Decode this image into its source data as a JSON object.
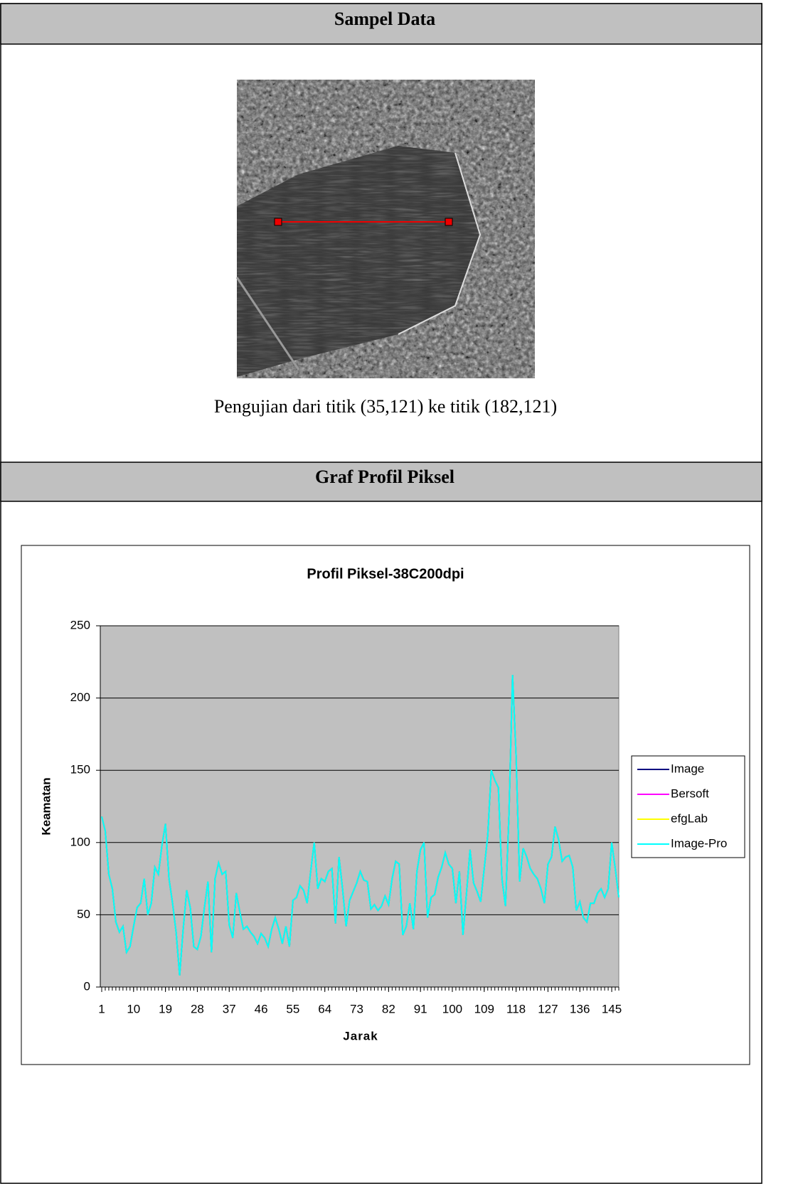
{
  "document": {
    "section_1_title": "Sampel Data",
    "caption": "Pengujian dari  titik (35,121) ke titik (182,121)",
    "section_2_title": "Graf Profil Piksel"
  },
  "chart_data": {
    "type": "line",
    "title": "Profil Piksel-38C200dpi",
    "x_label": "Jarak",
    "y_label": "Keamatan",
    "x": [
      1,
      2,
      3,
      4,
      5,
      6,
      7,
      8,
      9,
      10,
      11,
      12,
      13,
      14,
      15,
      16,
      17,
      18,
      19,
      20,
      21,
      22,
      23,
      24,
      25,
      26,
      27,
      28,
      29,
      30,
      31,
      32,
      33,
      34,
      35,
      36,
      37,
      38,
      39,
      40,
      41,
      42,
      43,
      44,
      45,
      46,
      47,
      48,
      49,
      50,
      51,
      52,
      53,
      54,
      55,
      56,
      57,
      58,
      59,
      60,
      61,
      62,
      63,
      64,
      65,
      66,
      67,
      68,
      69,
      70,
      71,
      72,
      73,
      74,
      75,
      76,
      77,
      78,
      79,
      80,
      81,
      82,
      83,
      84,
      85,
      86,
      87,
      88,
      89,
      90,
      91,
      92,
      93,
      94,
      95,
      96,
      97,
      98,
      99,
      100,
      101,
      102,
      103,
      104,
      105,
      106,
      107,
      108,
      109,
      110,
      111,
      112,
      113,
      114,
      115,
      116,
      117,
      118,
      119,
      120,
      121,
      122,
      123,
      124,
      125,
      126,
      127,
      128,
      129,
      130,
      131,
      132,
      133,
      134,
      135,
      136,
      137,
      138,
      139,
      140,
      141,
      142,
      143,
      144,
      145,
      146,
      147
    ],
    "xlim": [
      1,
      147
    ],
    "xticks": [
      1,
      10,
      19,
      28,
      37,
      46,
      55,
      64,
      73,
      82,
      91,
      100,
      109,
      118,
      127,
      136,
      145
    ],
    "ylim": [
      0,
      250
    ],
    "yticks": [
      0,
      50,
      100,
      150,
      200,
      250
    ],
    "grid": true,
    "legend": "right",
    "series": [
      {
        "name": "Image",
        "color": "#000080",
        "values": [
          118,
          108,
          78,
          68,
          45,
          38,
          42,
          24,
          28,
          42,
          55,
          58,
          75,
          50,
          58,
          83,
          78,
          98,
          113,
          75,
          58,
          38,
          8,
          40,
          67,
          55,
          28,
          26,
          35,
          55,
          73,
          24,
          75,
          86,
          78,
          80,
          43,
          34,
          65,
          52,
          40,
          42,
          38,
          35,
          30,
          37,
          34,
          28,
          40,
          48,
          40,
          30,
          42,
          28,
          60,
          62,
          70,
          67,
          58,
          80,
          100,
          68,
          75,
          73,
          80,
          82,
          44,
          90,
          68,
          42,
          60,
          66,
          72,
          80,
          74,
          73,
          54,
          57,
          53,
          56,
          63,
          57,
          75,
          87,
          85,
          36,
          42,
          58,
          40,
          80,
          95,
          100,
          48,
          62,
          64,
          76,
          83,
          93,
          85,
          82,
          58,
          80,
          36,
          65,
          95,
          72,
          66,
          59,
          82,
          105,
          150,
          143,
          138,
          75,
          56,
          120,
          216,
          160,
          73,
          96,
          90,
          82,
          78,
          75,
          68,
          58,
          85,
          90,
          111,
          102,
          87,
          90,
          91,
          83,
          53,
          59,
          48,
          45,
          58,
          58,
          65,
          68,
          62,
          68,
          100,
          82,
          62
        ]
      },
      {
        "name": "Bersoft",
        "color": "#ff00ff",
        "values": [
          118,
          108,
          78,
          68,
          45,
          38,
          42,
          24,
          28,
          42,
          55,
          58,
          75,
          50,
          58,
          83,
          78,
          98,
          113,
          75,
          58,
          38,
          8,
          40,
          67,
          55,
          28,
          26,
          35,
          55,
          73,
          24,
          75,
          86,
          78,
          80,
          43,
          34,
          65,
          52,
          40,
          42,
          38,
          35,
          30,
          37,
          34,
          28,
          40,
          48,
          40,
          30,
          42,
          28,
          60,
          62,
          70,
          67,
          58,
          80,
          100,
          68,
          75,
          73,
          80,
          82,
          44,
          90,
          68,
          42,
          60,
          66,
          72,
          80,
          74,
          73,
          54,
          57,
          53,
          56,
          63,
          57,
          75,
          87,
          85,
          36,
          42,
          58,
          40,
          80,
          95,
          100,
          48,
          62,
          64,
          76,
          83,
          93,
          85,
          82,
          58,
          80,
          36,
          65,
          95,
          72,
          66,
          59,
          82,
          105,
          150,
          143,
          138,
          75,
          56,
          120,
          216,
          160,
          73,
          96,
          90,
          82,
          78,
          75,
          68,
          58,
          85,
          90,
          111,
          102,
          87,
          90,
          91,
          83,
          53,
          59,
          48,
          45,
          58,
          58,
          65,
          68,
          62,
          68,
          100,
          82,
          62
        ]
      },
      {
        "name": "efgLab",
        "color": "#ffff00",
        "values": [
          118,
          108,
          78,
          68,
          45,
          38,
          42,
          24,
          28,
          42,
          55,
          58,
          75,
          50,
          58,
          83,
          78,
          98,
          113,
          75,
          58,
          38,
          8,
          40,
          67,
          55,
          28,
          26,
          35,
          55,
          73,
          24,
          75,
          86,
          78,
          80,
          43,
          34,
          65,
          52,
          40,
          42,
          38,
          35,
          30,
          37,
          34,
          28,
          40,
          48,
          40,
          30,
          42,
          28,
          60,
          62,
          70,
          67,
          58,
          80,
          100,
          68,
          75,
          73,
          80,
          82,
          44,
          90,
          68,
          42,
          60,
          66,
          72,
          80,
          74,
          73,
          54,
          57,
          53,
          56,
          63,
          57,
          75,
          87,
          85,
          36,
          42,
          58,
          40,
          80,
          95,
          100,
          48,
          62,
          64,
          76,
          83,
          93,
          85,
          82,
          58,
          80,
          36,
          65,
          95,
          72,
          66,
          59,
          82,
          105,
          150,
          143,
          138,
          75,
          56,
          120,
          216,
          160,
          73,
          96,
          90,
          82,
          78,
          75,
          68,
          58,
          85,
          90,
          111,
          102,
          87,
          90,
          91,
          83,
          53,
          59,
          48,
          45,
          58,
          58,
          65,
          68,
          62,
          68,
          100,
          82,
          62
        ]
      },
      {
        "name": "Image-Pro",
        "color": "#00ffff",
        "values": [
          118,
          108,
          78,
          68,
          45,
          38,
          42,
          24,
          28,
          42,
          55,
          58,
          75,
          50,
          58,
          83,
          78,
          98,
          113,
          75,
          58,
          38,
          8,
          40,
          67,
          55,
          28,
          26,
          35,
          55,
          73,
          24,
          75,
          86,
          78,
          80,
          43,
          34,
          65,
          52,
          40,
          42,
          38,
          35,
          30,
          37,
          34,
          28,
          40,
          48,
          40,
          30,
          42,
          28,
          60,
          62,
          70,
          67,
          58,
          80,
          100,
          68,
          75,
          73,
          80,
          82,
          44,
          90,
          68,
          42,
          60,
          66,
          72,
          80,
          74,
          73,
          54,
          57,
          53,
          56,
          63,
          57,
          75,
          87,
          85,
          36,
          42,
          58,
          40,
          80,
          95,
          100,
          48,
          62,
          64,
          76,
          83,
          93,
          85,
          82,
          58,
          80,
          36,
          65,
          95,
          72,
          66,
          59,
          82,
          105,
          150,
          143,
          138,
          75,
          56,
          120,
          216,
          160,
          73,
          96,
          90,
          82,
          78,
          75,
          68,
          58,
          85,
          90,
          111,
          102,
          87,
          90,
          91,
          83,
          53,
          59,
          48,
          45,
          58,
          58,
          65,
          68,
          62,
          68,
          100,
          82,
          62
        ]
      }
    ]
  }
}
